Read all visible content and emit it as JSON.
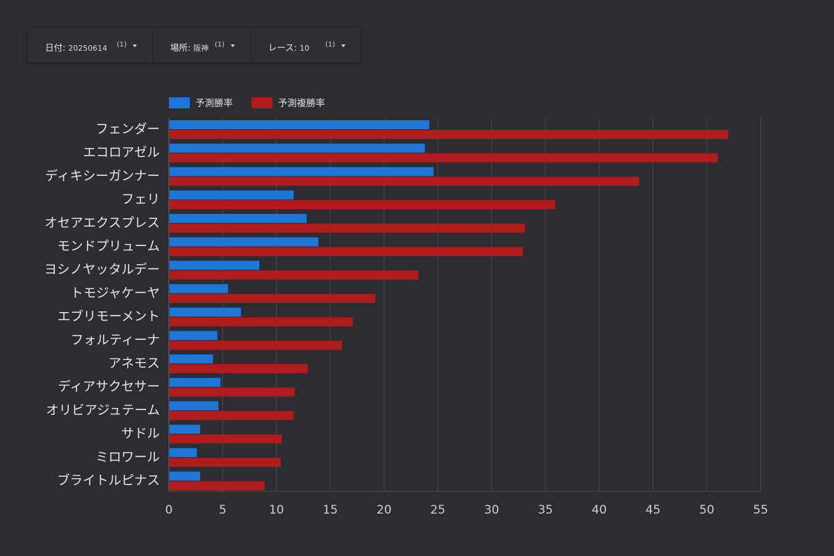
{
  "filters": [
    {
      "label": "日付",
      "value": "20250614",
      "count": "(1)"
    },
    {
      "label": "場所",
      "value": "阪神",
      "count": "(1)"
    },
    {
      "label": "レース",
      "value": "10",
      "count": "(1)"
    }
  ],
  "chart_data": {
    "type": "bar",
    "orientation": "horizontal",
    "categories": [
      "フェンダー",
      "エコロアゼル",
      "ディキシーガンナー",
      "フェリ",
      "オセアエクスプレス",
      "モンドプリューム",
      "ヨシノヤッタルデー",
      "トモジャケーヤ",
      "エブリモーメント",
      "フォルティーナ",
      "アネモス",
      "ディアサクセサー",
      "オリビアジュテーム",
      "サドル",
      "ミロワール",
      "ブライトルピナス"
    ],
    "series": [
      {
        "name": "予測勝率",
        "color": "#1d76d8",
        "values": [
          24.2,
          23.8,
          24.6,
          11.6,
          12.8,
          13.9,
          8.4,
          5.5,
          6.7,
          4.5,
          4.1,
          4.8,
          4.6,
          2.9,
          2.6,
          2.9
        ]
      },
      {
        "name": "予測複勝率",
        "color": "#b01c1c",
        "values": [
          52.0,
          51.0,
          43.7,
          35.9,
          33.1,
          32.9,
          23.2,
          19.2,
          17.1,
          16.1,
          12.9,
          11.7,
          11.6,
          10.5,
          10.4,
          8.9
        ]
      }
    ],
    "xticks": [
      0,
      5,
      10,
      15,
      20,
      25,
      30,
      35,
      40,
      45,
      50,
      55
    ],
    "xlim": [
      0,
      55
    ],
    "grid": true,
    "legend_position": "top-left",
    "title": "",
    "xlabel": "",
    "ylabel": ""
  }
}
